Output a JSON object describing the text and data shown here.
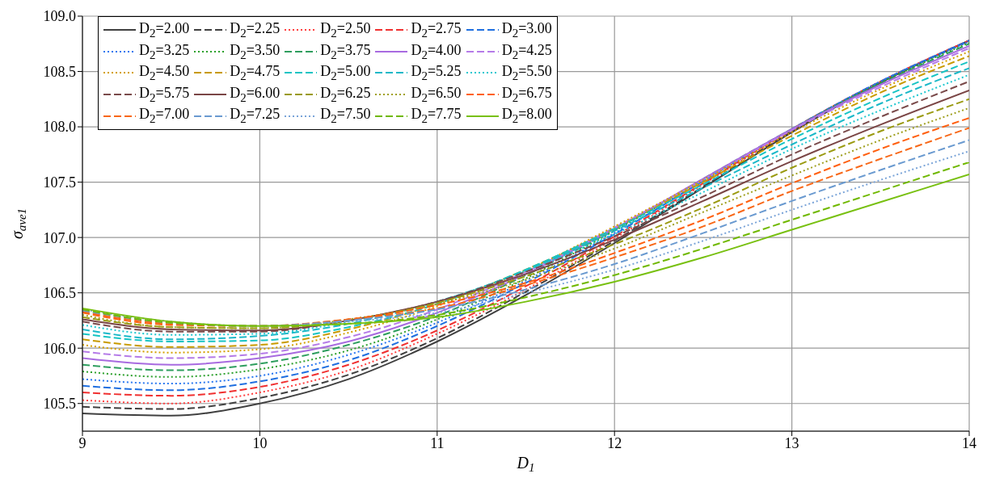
{
  "chart_data": {
    "type": "line",
    "xlabel": "D$_{1}$",
    "ylabel": "σ$_{ave1}$",
    "x": [
      9,
      9.5,
      10,
      10.5,
      11,
      11.5,
      12,
      12.5,
      13,
      13.5,
      14
    ],
    "xlim": [
      9,
      14
    ],
    "xticks": [
      9,
      10,
      11,
      12,
      13,
      14
    ],
    "ylim": [
      105.25,
      109
    ],
    "yticks": [
      {
        "value": 105.5,
        "label": "105.5"
      },
      {
        "value": 106,
        "label": "106.0"
      },
      {
        "value": 106.5,
        "label": "106.5"
      },
      {
        "value": 107,
        "label": "107.0"
      },
      {
        "value": 107.5,
        "label": "107.5"
      },
      {
        "value": 108,
        "label": "108.0"
      },
      {
        "value": 108.5,
        "label": "108.5"
      },
      {
        "value": 109,
        "label": "109.0"
      }
    ],
    "grid": true,
    "legend": "top left",
    "marker": "none",
    "series": [
      {
        "name": "D$_{2}$=2.00",
        "color": "#404040",
        "line_style": "solid",
        "values": [
          105.41,
          105.39,
          105.5,
          105.72,
          106.06,
          106.48,
          106.95,
          107.45,
          107.95,
          108.4,
          108.78
        ]
      },
      {
        "name": "D$_{2}$=2.25",
        "color": "#404040",
        "line_style": "dashed",
        "values": [
          105.47,
          105.45,
          105.55,
          105.76,
          106.09,
          106.51,
          106.97,
          107.46,
          107.96,
          108.4,
          108.78
        ]
      },
      {
        "name": "D$_{2}$=2.50",
        "color": "#ff4040",
        "line_style": "dotted",
        "values": [
          105.53,
          105.5,
          105.6,
          105.8,
          106.13,
          106.53,
          106.99,
          107.48,
          107.97,
          108.41,
          108.78
        ]
      },
      {
        "name": "D$_{2}$=2.75",
        "color": "#f03030",
        "line_style": "dashed",
        "values": [
          105.6,
          105.57,
          105.65,
          105.85,
          106.16,
          106.56,
          107.01,
          107.49,
          107.98,
          108.41,
          108.78
        ]
      },
      {
        "name": "D$_{2}$=3.00",
        "color": "#1f6fe0",
        "line_style": "dashed",
        "values": [
          105.66,
          105.62,
          105.7,
          105.89,
          106.2,
          106.59,
          107.03,
          107.51,
          107.98,
          108.41,
          108.78
        ]
      },
      {
        "name": "D$_{2}$=3.25",
        "color": "#2a78f0",
        "line_style": "dotted",
        "values": [
          105.72,
          105.68,
          105.75,
          105.94,
          106.23,
          106.61,
          107.04,
          107.51,
          107.98,
          108.41,
          108.77
        ]
      },
      {
        "name": "D$_{2}$=3.50",
        "color": "#2ca02c",
        "line_style": "dotted",
        "values": [
          105.79,
          105.74,
          105.81,
          105.98,
          106.26,
          106.63,
          107.06,
          107.52,
          107.98,
          108.4,
          108.76
        ]
      },
      {
        "name": "D$_{2}$=3.75",
        "color": "#2e9e5e",
        "line_style": "dashed",
        "values": [
          105.85,
          105.8,
          105.86,
          106.03,
          106.29,
          106.66,
          107.07,
          107.53,
          107.98,
          108.39,
          108.75
        ]
      },
      {
        "name": "D$_{2}$=4.00",
        "color": "#a86be0",
        "line_style": "solid",
        "values": [
          105.91,
          105.85,
          105.91,
          106.06,
          106.32,
          106.67,
          107.08,
          107.53,
          107.98,
          108.38,
          108.73
        ]
      },
      {
        "name": "D$_{2}$=4.25",
        "color": "#b57be8",
        "line_style": "dashed",
        "values": [
          105.97,
          105.91,
          105.95,
          106.1,
          106.35,
          106.69,
          107.09,
          107.52,
          107.97,
          108.36,
          108.71
        ]
      },
      {
        "name": "D$_{2}$=4.50",
        "color": "#d4a000",
        "line_style": "dotted",
        "values": [
          106.03,
          105.96,
          105.99,
          106.14,
          106.38,
          106.7,
          107.1,
          107.52,
          107.95,
          108.34,
          108.68
        ]
      },
      {
        "name": "D$_{2}$=4.75",
        "color": "#c89a00",
        "line_style": "dashed",
        "values": [
          106.08,
          106.01,
          106.03,
          106.17,
          106.4,
          106.71,
          107.08,
          107.5,
          107.92,
          108.31,
          108.64
        ]
      },
      {
        "name": "D$_{2}$=5.00",
        "color": "#17c4c4",
        "line_style": "dashed",
        "values": [
          106.13,
          106.06,
          106.07,
          106.19,
          106.4,
          106.71,
          107.08,
          107.48,
          107.89,
          108.26,
          108.59
        ]
      },
      {
        "name": "D$_{2}$=5.25",
        "color": "#1ab8c8",
        "line_style": "dashed",
        "values": [
          106.17,
          106.08,
          106.11,
          106.22,
          106.42,
          106.7,
          107.06,
          107.45,
          107.84,
          108.21,
          108.53
        ]
      },
      {
        "name": "D$_{2}$=5.50",
        "color": "#20c8d0",
        "line_style": "dotted",
        "values": [
          106.21,
          106.12,
          106.13,
          106.24,
          106.42,
          106.7,
          107.03,
          107.41,
          107.8,
          108.15,
          108.47
        ]
      },
      {
        "name": "D$_{2}$=5.75",
        "color": "#7a4a4a",
        "line_style": "dashed",
        "values": [
          106.24,
          106.15,
          106.15,
          106.25,
          106.42,
          106.69,
          107.01,
          107.37,
          107.75,
          108.09,
          108.41
        ]
      },
      {
        "name": "D$_{2}$=6.00",
        "color": "#7a4545",
        "line_style": "solid",
        "values": [
          106.26,
          106.17,
          106.16,
          106.25,
          106.42,
          106.67,
          106.98,
          107.33,
          107.69,
          108.02,
          108.33
        ]
      },
      {
        "name": "D$_{2}$=6.25",
        "color": "#9a9a10",
        "line_style": "dashed",
        "values": [
          106.28,
          106.19,
          106.18,
          106.25,
          106.41,
          106.65,
          106.94,
          107.27,
          107.63,
          107.96,
          108.25
        ]
      },
      {
        "name": "D$_{2}$=6.50",
        "color": "#a0a020",
        "line_style": "dotted",
        "values": [
          106.3,
          106.19,
          106.18,
          106.26,
          106.4,
          106.62,
          106.9,
          107.23,
          107.56,
          107.88,
          108.17
        ]
      },
      {
        "name": "D$_{2}$=6.75",
        "color": "#ff6010",
        "line_style": "dashed",
        "values": [
          106.32,
          106.21,
          106.2,
          106.26,
          106.39,
          106.59,
          106.86,
          107.16,
          107.49,
          107.8,
          108.08
        ]
      },
      {
        "name": "D$_{2}$=7.00",
        "color": "#f86818",
        "line_style": "dashed",
        "values": [
          106.33,
          106.22,
          106.2,
          106.26,
          106.36,
          106.57,
          106.82,
          107.1,
          107.42,
          107.71,
          107.99
        ]
      },
      {
        "name": "D$_{2}$=7.25",
        "color": "#6a9ad0",
        "line_style": "dashed",
        "values": [
          106.34,
          106.23,
          106.2,
          106.25,
          106.35,
          106.53,
          106.76,
          107.04,
          107.33,
          107.61,
          107.88
        ]
      },
      {
        "name": "D$_{2}$=7.50",
        "color": "#7aa4d8",
        "line_style": "dotted",
        "values": [
          106.35,
          106.24,
          106.2,
          106.24,
          106.32,
          106.5,
          106.71,
          106.97,
          107.25,
          107.52,
          107.78
        ]
      },
      {
        "name": "D$_{2}$=7.75",
        "color": "#70b800",
        "line_style": "dashed",
        "values": [
          106.35,
          106.23,
          106.2,
          106.22,
          106.3,
          106.46,
          106.66,
          106.9,
          107.16,
          107.42,
          107.68
        ]
      },
      {
        "name": "D$_{2}$=8.00",
        "color": "#78c010",
        "line_style": "solid",
        "values": [
          106.36,
          106.24,
          106.2,
          106.22,
          106.28,
          106.42,
          106.6,
          106.82,
          107.07,
          107.32,
          107.57
        ]
      }
    ]
  }
}
